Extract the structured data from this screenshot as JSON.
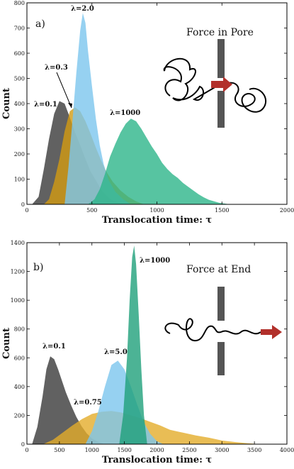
{
  "chart_data": [
    {
      "type": "area",
      "panel_label": "a)",
      "xlabel": "Translocation time: τ",
      "ylabel": "Count",
      "xlim": [
        0,
        2000
      ],
      "ylim": [
        0,
        800
      ],
      "xticks": [
        0,
        500,
        1000,
        1500,
        2000
      ],
      "yticks": [
        0,
        100,
        200,
        300,
        400,
        500,
        600,
        700,
        800
      ],
      "grid": false,
      "inset_text": "Force in Pore",
      "series": [
        {
          "name": "λ=0.1",
          "color": "#3a3a3a",
          "x": [
            40,
            90,
            130,
            170,
            210,
            250,
            290,
            330,
            370,
            410,
            450,
            490,
            530,
            570,
            610,
            650,
            700,
            750
          ],
          "y": [
            0,
            30,
            140,
            260,
            360,
            410,
            400,
            345,
            285,
            235,
            180,
            130,
            95,
            60,
            35,
            18,
            8,
            0
          ]
        },
        {
          "name": "λ=0.3",
          "color": "#d39b12",
          "x": [
            130,
            170,
            210,
            250,
            290,
            330,
            370,
            410,
            450,
            490,
            530,
            570,
            610,
            660,
            720,
            780,
            840,
            900
          ],
          "y": [
            0,
            20,
            90,
            180,
            290,
            370,
            385,
            370,
            330,
            280,
            225,
            175,
            130,
            90,
            55,
            30,
            12,
            0
          ]
        },
        {
          "name": "λ=2.0",
          "color": "#7cc6ee",
          "x": [
            290,
            320,
            350,
            380,
            410,
            430,
            450,
            470,
            500,
            530,
            560,
            590,
            630,
            680,
            740,
            800
          ],
          "y": [
            0,
            150,
            330,
            520,
            690,
            760,
            720,
            610,
            470,
            340,
            235,
            160,
            95,
            50,
            20,
            0
          ]
        },
        {
          "name": "λ=1000",
          "color": "#2db58a",
          "x": [
            470,
            520,
            560,
            600,
            640,
            680,
            720,
            760,
            800,
            840,
            880,
            920,
            960,
            1000,
            1040,
            1080,
            1120,
            1160,
            1200,
            1240,
            1280,
            1320,
            1360,
            1400,
            1440,
            1480,
            1520,
            1560
          ],
          "y": [
            0,
            20,
            60,
            120,
            190,
            240,
            285,
            320,
            340,
            330,
            300,
            265,
            230,
            200,
            165,
            140,
            120,
            105,
            85,
            70,
            55,
            40,
            28,
            18,
            12,
            6,
            3,
            0
          ]
        }
      ]
    },
    {
      "type": "area",
      "panel_label": "b)",
      "xlabel": "Translocation time: τ",
      "ylabel": "Count",
      "xlim": [
        0,
        4000
      ],
      "ylim": [
        0,
        1400
      ],
      "xticks": [
        0,
        500,
        1000,
        1500,
        2000,
        2500,
        3000,
        3500,
        4000
      ],
      "yticks": [
        0,
        200,
        400,
        600,
        800,
        1000,
        1200,
        1400
      ],
      "grid": false,
      "inset_text": "Force at End",
      "series": [
        {
          "name": "λ=0.1",
          "color": "#3a3a3a",
          "x": [
            80,
            160,
            240,
            300,
            360,
            420,
            480,
            540,
            600,
            680,
            760,
            840,
            920,
            1000,
            1100,
            1200
          ],
          "y": [
            0,
            120,
            330,
            520,
            610,
            590,
            520,
            440,
            360,
            270,
            190,
            125,
            75,
            40,
            15,
            0
          ]
        },
        {
          "name": "λ=0.75",
          "color": "#e3ad2b",
          "x": [
            250,
            400,
            550,
            700,
            850,
            1000,
            1150,
            1300,
            1450,
            1600,
            1750,
            1900,
            2050,
            2200,
            2400,
            2600,
            2800,
            3000,
            3200,
            3400,
            3600
          ],
          "y": [
            0,
            30,
            80,
            130,
            175,
            210,
            225,
            230,
            220,
            200,
            180,
            155,
            130,
            100,
            80,
            60,
            45,
            25,
            15,
            6,
            0
          ]
        },
        {
          "name": "λ=5.0",
          "color": "#7cc6ee",
          "x": [
            900,
            1000,
            1100,
            1200,
            1300,
            1400,
            1500,
            1600,
            1700,
            1800,
            1900,
            2000,
            2100
          ],
          "y": [
            0,
            90,
            230,
            400,
            550,
            580,
            520,
            400,
            270,
            150,
            70,
            20,
            0
          ]
        },
        {
          "name": "λ=1000",
          "color": "#1fa07a",
          "x": [
            1420,
            1480,
            1540,
            1580,
            1620,
            1650,
            1680,
            1720,
            1760,
            1800,
            1850
          ],
          "y": [
            0,
            200,
            600,
            1000,
            1300,
            1380,
            1250,
            900,
            520,
            200,
            0
          ]
        }
      ]
    }
  ]
}
